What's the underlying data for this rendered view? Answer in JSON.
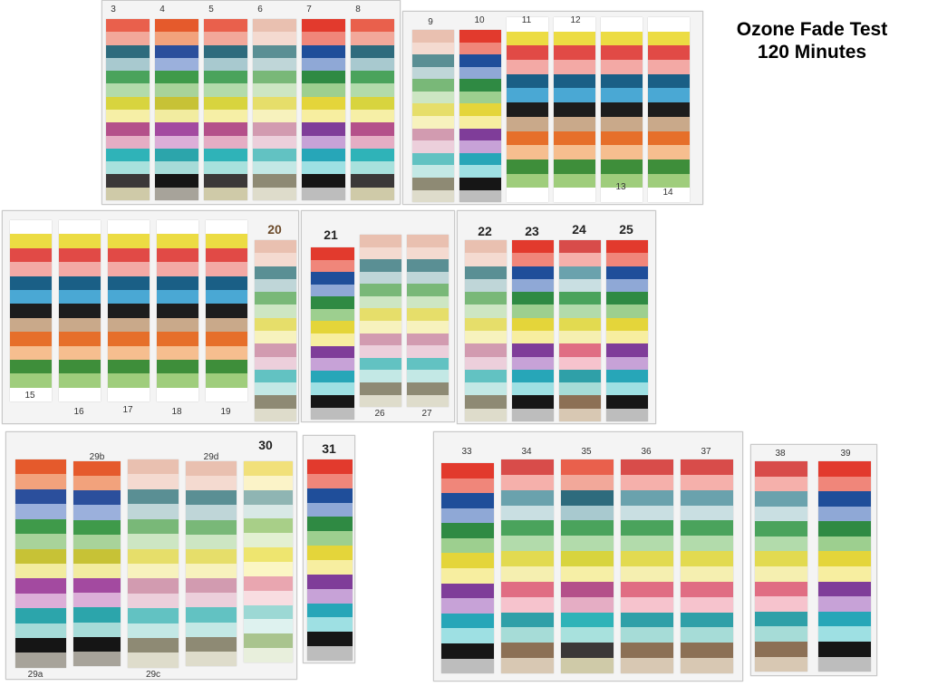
{
  "title": {
    "line1": "Ozone Fade Test",
    "line2": "120  Minutes"
  },
  "labels": {
    "l3": "3",
    "l4": "4",
    "l5": "5",
    "l6": "6",
    "l7": "7",
    "l8": "8",
    "l9": "9",
    "l10": "10",
    "l11": "11",
    "l12": "12",
    "l13": "13",
    "l14": "14",
    "l15": "15",
    "l16": "16",
    "l17": "17",
    "l18": "18",
    "l19": "19",
    "l20": "20",
    "l21": "21",
    "l26": "26",
    "l27": "27",
    "l22": "22",
    "l23": "23",
    "l24": "24",
    "l25": "25",
    "l29a": "29a",
    "l29b": "29b",
    "l29c": "29c",
    "l29d": "29d",
    "l30": "30",
    "l31": "31",
    "l33": "33",
    "l34": "34",
    "l35": "35",
    "l36": "36",
    "l37": "37",
    "l38": "38",
    "l39": "39"
  },
  "palettes": {
    "A": [
      "#e9604c",
      "#f2a89a",
      "#2e6b7d",
      "#a8c9cf",
      "#4aa35c",
      "#b2dbab",
      "#d8d43e",
      "#f6efa6",
      "#b4508a",
      "#e5adc4",
      "#2fb3b8",
      "#a8e1dd",
      "#3b3838",
      "#cfcaa8"
    ],
    "B": [
      "#ffffff",
      "#ecdc43",
      "#e14a46",
      "#f3a9a5",
      "#1a5f86",
      "#4aa8d4",
      "#1d1d1d",
      "#c9a98a",
      "#e66f2a",
      "#f6be8f",
      "#3e8e3a",
      "#9fcd7c",
      "#ffffff"
    ],
    "C": [
      "#e9c0b0",
      "#f4dad0",
      "#5a8f94",
      "#bfd6d8",
      "#79b878",
      "#cde6c3",
      "#e6de6a",
      "#f7f2bd",
      "#d29bb0",
      "#eccfdb",
      "#62c2c2",
      "#c3e8e5",
      "#8e8a74",
      "#dedccb"
    ],
    "D": [
      "#e23a2d",
      "#f0867a",
      "#1f4e9a",
      "#8fa8d6",
      "#2f8a43",
      "#9dcf8f",
      "#e4d53a",
      "#f7eea0",
      "#7f3d99",
      "#c7a2d7",
      "#27a6b8",
      "#9ee0e3",
      "#161616",
      "#bdbdbd"
    ],
    "E": [
      "#d84c4a",
      "#f5b0ab",
      "#6aa2ad",
      "#c9dfe2",
      "#4aa35c",
      "#b2dbab",
      "#e2da50",
      "#f5efb0",
      "#e06d83",
      "#f6c3cd",
      "#2fa0a8",
      "#a6dcd7",
      "#8c7055",
      "#d8c8b3"
    ],
    "F": [
      "#e55a2c",
      "#f2a27c",
      "#2b4f9c",
      "#9bb0dc",
      "#3f9a4a",
      "#a8d39a",
      "#c7c236",
      "#f2eca0",
      "#a34aa0",
      "#dcaed8",
      "#2ca5ab",
      "#a6dbd8",
      "#151515",
      "#a7a39a"
    ],
    "G": [
      "#f1e07a",
      "#fbf3c8",
      "#8fb5b3",
      "#d8e8e6",
      "#a8cf88",
      "#e3f0d2",
      "#eee56f",
      "#fbf6c4",
      "#e9a6b0",
      "#f8dde1",
      "#9cd8d4",
      "#def2ef",
      "#a9c48e",
      "#e8efdc"
    ]
  },
  "strips": {
    "s3": "A",
    "s4": "F",
    "s5": "A",
    "s6": "C",
    "s7": "D",
    "s8": "A",
    "s9": "C",
    "s10": "D",
    "s11": "B",
    "s12": "B",
    "s13": "B",
    "s14": "B",
    "s15": "B",
    "s16": "B",
    "s17": "B",
    "s18": "B",
    "s19": "B",
    "s20": "C",
    "s21": "D",
    "s26": "C",
    "s27": "C",
    "s22": "C",
    "s23": "D",
    "s24": "E",
    "s25": "D",
    "s29a": "F",
    "s29b": "F",
    "s29c": "C",
    "s29d": "C",
    "s30": "G",
    "s31": "D",
    "s33": "D",
    "s34": "E",
    "s35": "A",
    "s36": "E",
    "s37": "E",
    "s38": "E",
    "s39": "D"
  }
}
